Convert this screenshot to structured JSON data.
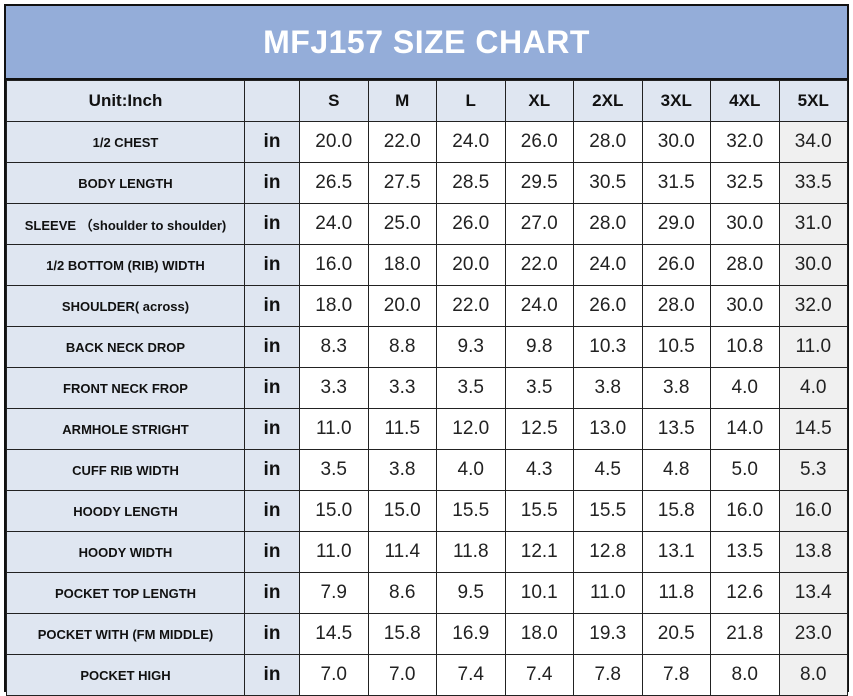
{
  "chart_data": {
    "type": "table",
    "title": "MFJ157 SIZE CHART",
    "unit_header": "Unit:Inch",
    "unit": "in",
    "columns": [
      "S",
      "M",
      "L",
      "XL",
      "2XL",
      "3XL",
      "4XL",
      "5XL"
    ],
    "rows": [
      {
        "label": "1/2 CHEST",
        "values": [
          "20.0",
          "22.0",
          "24.0",
          "26.0",
          "28.0",
          "30.0",
          "32.0",
          "34.0"
        ]
      },
      {
        "label": "BODY LENGTH",
        "values": [
          "26.5",
          "27.5",
          "28.5",
          "29.5",
          "30.5",
          "31.5",
          "32.5",
          "33.5"
        ]
      },
      {
        "label": "SLEEVE  （shoulder to shoulder)",
        "values": [
          "24.0",
          "25.0",
          "26.0",
          "27.0",
          "28.0",
          "29.0",
          "30.0",
          "31.0"
        ]
      },
      {
        "label": "1/2 BOTTOM (RIB) WIDTH",
        "values": [
          "16.0",
          "18.0",
          "20.0",
          "22.0",
          "24.0",
          "26.0",
          "28.0",
          "30.0"
        ]
      },
      {
        "label": "SHOULDER( across)",
        "values": [
          "18.0",
          "20.0",
          "22.0",
          "24.0",
          "26.0",
          "28.0",
          "30.0",
          "32.0"
        ]
      },
      {
        "label": "BACK NECK DROP",
        "values": [
          "8.3",
          "8.8",
          "9.3",
          "9.8",
          "10.3",
          "10.5",
          "10.8",
          "11.0"
        ]
      },
      {
        "label": "FRONT NECK FROP",
        "values": [
          "3.3",
          "3.3",
          "3.5",
          "3.5",
          "3.8",
          "3.8",
          "4.0",
          "4.0"
        ]
      },
      {
        "label": "ARMHOLE STRIGHT",
        "values": [
          "11.0",
          "11.5",
          "12.0",
          "12.5",
          "13.0",
          "13.5",
          "14.0",
          "14.5"
        ]
      },
      {
        "label": "CUFF RIB WIDTH",
        "values": [
          "3.5",
          "3.8",
          "4.0",
          "4.3",
          "4.5",
          "4.8",
          "5.0",
          "5.3"
        ]
      },
      {
        "label": "HOODY LENGTH",
        "values": [
          "15.0",
          "15.0",
          "15.5",
          "15.5",
          "15.5",
          "15.8",
          "16.0",
          "16.0"
        ]
      },
      {
        "label": "HOODY WIDTH",
        "values": [
          "11.0",
          "11.4",
          "11.8",
          "12.1",
          "12.8",
          "13.1",
          "13.5",
          "13.8"
        ]
      },
      {
        "label": "POCKET TOP LENGTH",
        "values": [
          "7.9",
          "8.6",
          "9.5",
          "10.1",
          "11.0",
          "11.8",
          "12.6",
          "13.4"
        ]
      },
      {
        "label": "POCKET WITH (FM MIDDLE)",
        "values": [
          "14.5",
          "15.8",
          "16.9",
          "18.0",
          "19.3",
          "20.5",
          "21.8",
          "23.0"
        ]
      },
      {
        "label": "POCKET HIGH",
        "values": [
          "7.0",
          "7.0",
          "7.4",
          "7.4",
          "7.8",
          "7.8",
          "8.0",
          "8.0"
        ]
      }
    ],
    "colors": {
      "title_bg": "#94add9",
      "header_bg": "#dfe6f1",
      "shade_bg": "#f0f0f0"
    }
  }
}
